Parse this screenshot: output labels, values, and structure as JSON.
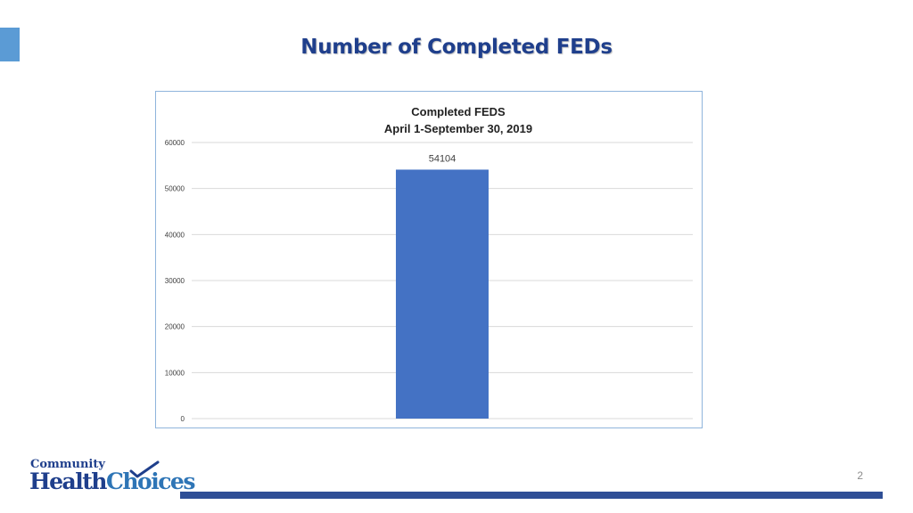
{
  "slide": {
    "title": "Number of Completed FEDs",
    "page_number": "2",
    "logo": {
      "line1": "Community",
      "health": "Health",
      "choices": "Choices"
    }
  },
  "colors": {
    "title": "#1f3f8c",
    "bar": "#4472c4",
    "accent": "#5b9bd5",
    "footer_bar": "#2f4f96"
  },
  "chart_data": {
    "type": "bar",
    "title": "Completed FEDS",
    "subtitle": "April 1-September 30, 2019",
    "categories": [
      ""
    ],
    "values": [
      54104
    ],
    "data_labels": [
      "54104"
    ],
    "ylim": [
      0,
      60000
    ],
    "yticks": [
      0,
      10000,
      20000,
      30000,
      40000,
      50000,
      60000
    ],
    "grid": true,
    "legend": "none"
  }
}
